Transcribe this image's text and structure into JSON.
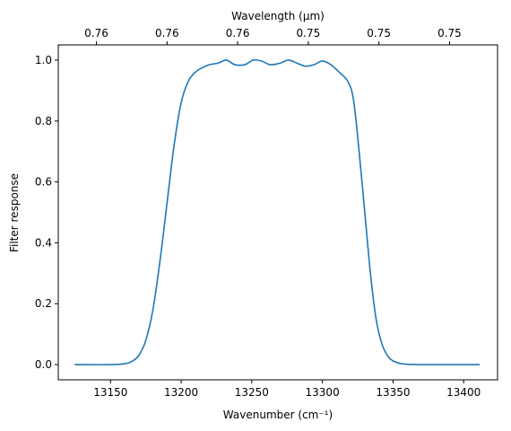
{
  "chart_data": {
    "type": "line",
    "title": "",
    "xlabel": "Wavenumber (cm⁻¹)",
    "ylabel": "Filter response",
    "top_xlabel": "Wavelength (μm)",
    "xlim": [
      13113,
      13424
    ],
    "ylim": [
      -0.05,
      1.05
    ],
    "x_ticks": [
      13150,
      13200,
      13250,
      13300,
      13350,
      13400
    ],
    "x_tick_labels": [
      "13150",
      "13200",
      "13250",
      "13300",
      "13350",
      "13400"
    ],
    "y_ticks": [
      0.0,
      0.2,
      0.4,
      0.6,
      0.8,
      1.0
    ],
    "y_tick_labels": [
      "0.0",
      "0.2",
      "0.4",
      "0.6",
      "0.8",
      "1.0"
    ],
    "top_x_ticks": [
      13140,
      13190,
      13240,
      13290,
      13340,
      13390
    ],
    "top_x_tick_labels": [
      "0.76",
      "0.76",
      "0.76",
      "0.75",
      "0.75",
      "0.75"
    ],
    "grid": false,
    "line_color": "#1f77b4",
    "series": [
      {
        "x": [
          13125,
          13150,
          13160,
          13165,
          13170,
          13175,
          13180,
          13185,
          13190,
          13195,
          13200,
          13205,
          13210,
          13215,
          13220,
          13226,
          13232,
          13238,
          13245,
          13251,
          13257,
          13263,
          13270,
          13276,
          13282,
          13288,
          13294,
          13300,
          13306,
          13312,
          13318,
          13322,
          13326,
          13330,
          13334,
          13338,
          13342,
          13346,
          13350,
          13355,
          13360,
          13370,
          13380,
          13411
        ],
        "y": [
          0.0,
          0.0,
          0.003,
          0.01,
          0.03,
          0.08,
          0.18,
          0.34,
          0.53,
          0.72,
          0.86,
          0.93,
          0.96,
          0.975,
          0.985,
          0.99,
          1.0,
          0.985,
          0.985,
          1.0,
          0.997,
          0.985,
          0.99,
          1.0,
          0.99,
          0.98,
          0.985,
          0.997,
          0.985,
          0.96,
          0.93,
          0.87,
          0.7,
          0.5,
          0.3,
          0.15,
          0.07,
          0.03,
          0.012,
          0.004,
          0.001,
          0.0,
          0.0,
          0.0
        ]
      }
    ]
  }
}
